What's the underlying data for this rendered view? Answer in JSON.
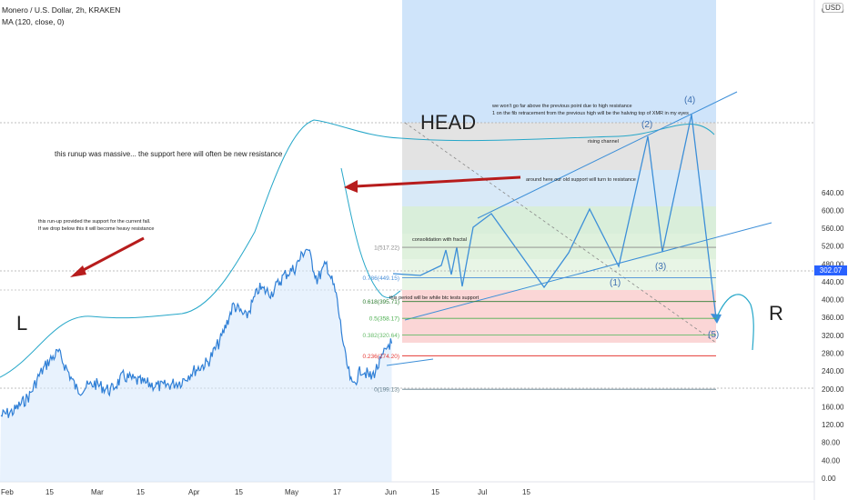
{
  "header": {
    "title": "Monero / U.S. Dollar, 2h, KRAKEN",
    "indicator": "MA (120, close, 0)",
    "currency": "USD"
  },
  "price_tag": "302.07",
  "chart_data": {
    "type": "line",
    "y_ticks": [
      "660.00",
      "640.00",
      "600.00",
      "560.00",
      "520.00",
      "480.00",
      "440.00",
      "400.00",
      "360.00",
      "320.00",
      "280.00",
      "240.00",
      "200.00",
      "160.00",
      "120.00",
      "80.00",
      "40.00",
      "0.00"
    ],
    "x_ticks": [
      "Feb",
      "15",
      "Mar",
      "15",
      "Apr",
      "15",
      "May",
      "17",
      "Jun",
      "15",
      "Jul",
      "15"
    ],
    "ylim": [
      0,
      680
    ],
    "price_series": [
      {
        "x": "Feb 1",
        "y": 140
      },
      {
        "x": "Feb 5",
        "y": 150
      },
      {
        "x": "Feb 10",
        "y": 185
      },
      {
        "x": "Feb 13",
        "y": 230
      },
      {
        "x": "Feb 16",
        "y": 262
      },
      {
        "x": "Feb 19",
        "y": 282
      },
      {
        "x": "Feb 22",
        "y": 240
      },
      {
        "x": "Feb 25",
        "y": 196
      },
      {
        "x": "Mar 1",
        "y": 212
      },
      {
        "x": "Mar 6",
        "y": 196
      },
      {
        "x": "Mar 10",
        "y": 228
      },
      {
        "x": "Mar 16",
        "y": 214
      },
      {
        "x": "Mar 22",
        "y": 205
      },
      {
        "x": "Mar 28",
        "y": 216
      },
      {
        "x": "Apr 1",
        "y": 238
      },
      {
        "x": "Apr 6",
        "y": 260
      },
      {
        "x": "Apr 10",
        "y": 310
      },
      {
        "x": "Apr 14",
        "y": 388
      },
      {
        "x": "Apr 18",
        "y": 360
      },
      {
        "x": "Apr 22",
        "y": 425
      },
      {
        "x": "Apr 26",
        "y": 415
      },
      {
        "x": "Apr 30",
        "y": 455
      },
      {
        "x": "May 3",
        "y": 470
      },
      {
        "x": "May 6",
        "y": 510
      },
      {
        "x": "May 7",
        "y": 515
      },
      {
        "x": "May 10",
        "y": 445
      },
      {
        "x": "May 13",
        "y": 480
      },
      {
        "x": "May 16",
        "y": 410
      },
      {
        "x": "May 19",
        "y": 265
      },
      {
        "x": "May 21",
        "y": 205
      },
      {
        "x": "May 24",
        "y": 245
      },
      {
        "x": "May 27",
        "y": 225
      },
      {
        "x": "May 30",
        "y": 262
      },
      {
        "x": "Jun 1",
        "y": 300
      },
      {
        "x": "Jun 2",
        "y": 302
      }
    ],
    "ma_label": "MA (120, close, 0)",
    "fib_levels": [
      {
        "label": "1(517.22)",
        "value": 517.22,
        "color": "#888888"
      },
      {
        "label": "0.786(449.15)",
        "value": 449.15,
        "color": "#4a90d9"
      },
      {
        "label": "0.618(395.71)",
        "value": 395.71,
        "color": "#2e7d32"
      },
      {
        "label": "0.5(358.17)",
        "value": 358.17,
        "color": "#4caf50"
      },
      {
        "label": "0.382(320.64)",
        "value": 320.64,
        "color": "#66bb6a"
      },
      {
        "label": "0.236(274.20)",
        "value": 274.2,
        "color": "#e53935"
      },
      {
        "label": "0(199.13)",
        "value": 199.13,
        "color": "#607d8b"
      }
    ],
    "wave_labels": [
      "(1)",
      "(2)",
      "(3)",
      "(4)",
      "(5)"
    ],
    "annotations": {
      "head": "HEAD",
      "left_shoulder": "L",
      "right_shoulder": "R",
      "runup_note": "this runup was massive... the support here will often be new resistance",
      "support_note_1": "this run-up provided the support for the current fall.",
      "support_note_2": "If we drop below this it will become heavy resistance",
      "resistance_note_1": "we won't go far above the previous point due to high resistance",
      "resistance_note_2": "1 on the fib retracement from the previous high will be the halving top of XMR in my eyes",
      "old_support_note": "around here our old support will turn to resistance",
      "rising_channel": "rising channel",
      "consolidation": "consolidation with fractal",
      "btc_note": "this period will be while btc tests support"
    },
    "colors": {
      "price": "#2f7fd6",
      "ma": "#26a7c9",
      "projection": "#3d8fd8",
      "arrow": "#b71c1c",
      "projection_bg": "#bcdcf8",
      "price_tag": "#2962ff"
    }
  }
}
